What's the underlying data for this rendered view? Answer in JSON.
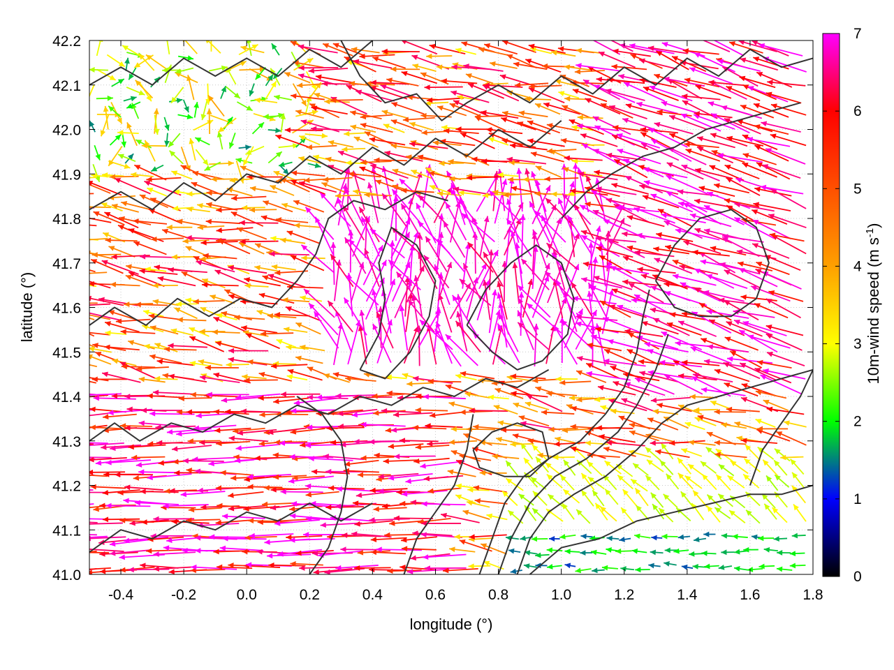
{
  "chart_data": {
    "type": "vector-field",
    "xlabel": "longitude (°)",
    "ylabel": "latitude (°)",
    "colorbar_label": "10m-wind speed (m s",
    "colorbar_label_sup": "-1",
    "colorbar_label_end": ")",
    "xlim": [
      -0.5,
      1.8
    ],
    "ylim": [
      41.0,
      42.2
    ],
    "x_ticks": [
      -0.4,
      -0.2,
      0.0,
      0.2,
      0.4,
      0.6,
      0.8,
      1.0,
      1.2,
      1.4,
      1.6,
      1.8
    ],
    "x_tick_labels": [
      "-0.4",
      "-0.2",
      "0.0",
      "0.2",
      "0.4",
      "0.6",
      "0.8",
      "1.0",
      "1.2",
      "1.4",
      "1.6",
      "1.8"
    ],
    "y_ticks": [
      41.0,
      41.1,
      41.2,
      41.3,
      41.4,
      41.5,
      41.6,
      41.7,
      41.8,
      41.9,
      42.0,
      42.1,
      42.2
    ],
    "y_tick_labels": [
      "41.0",
      "41.1",
      "41.2",
      "41.3",
      "41.4",
      "41.5",
      "41.6",
      "41.7",
      "41.8",
      "41.9",
      "42.0",
      "42.1",
      "42.2"
    ],
    "colorbar_range": [
      0,
      7
    ],
    "colorbar_ticks": [
      0,
      1,
      2,
      3,
      4,
      5,
      6,
      7
    ],
    "colorbar_tick_labels": [
      "0",
      "1",
      "2",
      "3",
      "4",
      "5",
      "6",
      "7"
    ],
    "colormap_stops": [
      {
        "value": 0,
        "color": "#000000"
      },
      {
        "value": 1,
        "color": "#0000ff"
      },
      {
        "value": 2,
        "color": "#00ff00"
      },
      {
        "value": 3,
        "color": "#ffff00"
      },
      {
        "value": 4,
        "color": "#ffa000"
      },
      {
        "value": 5,
        "color": "#ff5000"
      },
      {
        "value": 6,
        "color": "#ff0000"
      },
      {
        "value": 7,
        "color": "#ff00ff"
      }
    ],
    "grid": true,
    "contour_color": "#333333",
    "contours": [
      [
        [
          0.74,
          41.0
        ],
        [
          0.78,
          41.08
        ],
        [
          0.82,
          41.16
        ],
        [
          0.88,
          41.22
        ],
        [
          0.96,
          41.26
        ],
        [
          1.06,
          41.3
        ],
        [
          1.14,
          41.36
        ],
        [
          1.2,
          41.42
        ],
        [
          1.24,
          41.5
        ],
        [
          1.26,
          41.58
        ],
        [
          1.28,
          41.64
        ]
      ],
      [
        [
          0.8,
          41.0
        ],
        [
          0.84,
          41.08
        ],
        [
          0.9,
          41.16
        ],
        [
          0.98,
          41.22
        ],
        [
          1.08,
          41.26
        ],
        [
          1.18,
          41.32
        ],
        [
          1.24,
          41.38
        ],
        [
          1.3,
          41.46
        ],
        [
          1.34,
          41.54
        ]
      ],
      [
        [
          0.86,
          41.0
        ],
        [
          0.9,
          41.08
        ],
        [
          0.96,
          41.14
        ],
        [
          1.04,
          41.18
        ],
        [
          1.14,
          41.22
        ],
        [
          1.24,
          41.28
        ],
        [
          1.32,
          41.34
        ],
        [
          1.4,
          41.38
        ],
        [
          1.5,
          41.4
        ],
        [
          1.6,
          41.42
        ],
        [
          1.7,
          41.44
        ],
        [
          1.8,
          41.46
        ]
      ],
      [
        [
          0.9,
          41.0
        ],
        [
          1.0,
          41.06
        ],
        [
          1.12,
          41.08
        ],
        [
          1.24,
          41.12
        ],
        [
          1.36,
          41.14
        ],
        [
          1.48,
          41.16
        ],
        [
          1.6,
          41.18
        ],
        [
          1.7,
          41.18
        ],
        [
          1.8,
          41.2
        ]
      ],
      [
        [
          -0.5,
          41.05
        ],
        [
          -0.4,
          41.1
        ],
        [
          -0.3,
          41.08
        ],
        [
          -0.2,
          41.12
        ],
        [
          -0.1,
          41.1
        ],
        [
          0.0,
          41.14
        ],
        [
          0.1,
          41.12
        ],
        [
          0.2,
          41.16
        ],
        [
          0.3,
          41.12
        ],
        [
          0.4,
          41.16
        ]
      ],
      [
        [
          -0.5,
          41.3
        ],
        [
          -0.42,
          41.34
        ],
        [
          -0.34,
          41.3
        ],
        [
          -0.24,
          41.34
        ],
        [
          -0.14,
          41.32
        ],
        [
          -0.04,
          41.36
        ],
        [
          0.06,
          41.34
        ],
        [
          0.16,
          41.38
        ],
        [
          0.26,
          41.36
        ],
        [
          0.36,
          41.4
        ],
        [
          0.46,
          41.38
        ],
        [
          0.56,
          41.42
        ],
        [
          0.66,
          41.4
        ],
        [
          0.76,
          41.44
        ],
        [
          0.86,
          41.42
        ],
        [
          0.96,
          41.46
        ]
      ],
      [
        [
          -0.5,
          41.56
        ],
        [
          -0.42,
          41.6
        ],
        [
          -0.32,
          41.56
        ],
        [
          -0.22,
          41.62
        ],
        [
          -0.12,
          41.58
        ],
        [
          -0.02,
          41.62
        ],
        [
          0.08,
          41.6
        ],
        [
          0.16,
          41.66
        ],
        [
          0.22,
          41.72
        ],
        [
          0.26,
          41.8
        ],
        [
          0.34,
          41.84
        ],
        [
          0.44,
          41.82
        ],
        [
          0.54,
          41.86
        ],
        [
          0.64,
          41.84
        ]
      ],
      [
        [
          -0.5,
          41.82
        ],
        [
          -0.4,
          41.86
        ],
        [
          -0.3,
          41.82
        ],
        [
          -0.2,
          41.88
        ],
        [
          -0.1,
          41.84
        ],
        [
          0.0,
          41.9
        ],
        [
          0.1,
          41.88
        ],
        [
          0.2,
          41.94
        ],
        [
          0.3,
          41.9
        ],
        [
          0.4,
          41.96
        ],
        [
          0.5,
          41.92
        ],
        [
          0.6,
          41.98
        ],
        [
          0.7,
          41.94
        ],
        [
          0.8,
          42.0
        ],
        [
          0.9,
          41.96
        ],
        [
          1.0,
          42.02
        ]
      ],
      [
        [
          -0.5,
          42.1
        ],
        [
          -0.4,
          42.14
        ],
        [
          -0.3,
          42.1
        ],
        [
          -0.2,
          42.16
        ],
        [
          -0.1,
          42.12
        ],
        [
          0.0,
          42.16
        ],
        [
          0.1,
          42.12
        ],
        [
          0.2,
          42.18
        ],
        [
          0.3,
          42.14
        ],
        [
          0.4,
          42.2
        ]
      ],
      [
        [
          0.3,
          42.2
        ],
        [
          0.36,
          42.12
        ],
        [
          0.44,
          42.06
        ],
        [
          0.54,
          42.08
        ],
        [
          0.62,
          42.02
        ],
        [
          0.7,
          42.06
        ],
        [
          0.8,
          42.1
        ],
        [
          0.9,
          42.06
        ],
        [
          1.0,
          42.12
        ],
        [
          1.1,
          42.08
        ],
        [
          1.2,
          42.14
        ],
        [
          1.3,
          42.1
        ],
        [
          1.4,
          42.16
        ],
        [
          1.5,
          42.12
        ],
        [
          1.6,
          42.18
        ],
        [
          1.7,
          42.14
        ],
        [
          1.8,
          42.16
        ]
      ],
      [
        [
          0.36,
          41.46
        ],
        [
          0.42,
          41.54
        ],
        [
          0.44,
          41.62
        ],
        [
          0.42,
          41.7
        ],
        [
          0.46,
          41.78
        ],
        [
          0.54,
          41.74
        ],
        [
          0.6,
          41.66
        ],
        [
          0.58,
          41.58
        ],
        [
          0.52,
          41.5
        ],
        [
          0.44,
          41.44
        ],
        [
          0.36,
          41.46
        ]
      ],
      [
        [
          0.7,
          41.56
        ],
        [
          0.76,
          41.64
        ],
        [
          0.84,
          41.7
        ],
        [
          0.92,
          41.74
        ],
        [
          1.0,
          41.7
        ],
        [
          1.04,
          41.62
        ],
        [
          1.02,
          41.54
        ],
        [
          0.94,
          41.48
        ],
        [
          0.86,
          41.46
        ],
        [
          0.78,
          41.5
        ],
        [
          0.7,
          41.56
        ]
      ],
      [
        [
          1.3,
          41.66
        ],
        [
          1.36,
          41.74
        ],
        [
          1.44,
          41.8
        ],
        [
          1.54,
          41.82
        ],
        [
          1.62,
          41.78
        ],
        [
          1.66,
          41.7
        ],
        [
          1.62,
          41.62
        ],
        [
          1.54,
          41.58
        ],
        [
          1.44,
          41.58
        ],
        [
          1.36,
          41.6
        ],
        [
          1.3,
          41.66
        ]
      ],
      [
        [
          0.72,
          41.28
        ],
        [
          0.78,
          41.32
        ],
        [
          0.86,
          41.34
        ],
        [
          0.94,
          41.32
        ],
        [
          0.96,
          41.26
        ],
        [
          0.9,
          41.22
        ],
        [
          0.82,
          41.22
        ],
        [
          0.74,
          41.24
        ],
        [
          0.72,
          41.28
        ]
      ],
      [
        [
          0.2,
          41.0
        ],
        [
          0.26,
          41.06
        ],
        [
          0.3,
          41.14
        ],
        [
          0.32,
          41.22
        ],
        [
          0.3,
          41.3
        ],
        [
          0.24,
          41.36
        ],
        [
          0.16,
          41.4
        ]
      ],
      [
        [
          0.5,
          41.0
        ],
        [
          0.54,
          41.08
        ],
        [
          0.6,
          41.14
        ],
        [
          0.66,
          41.2
        ],
        [
          0.7,
          41.28
        ],
        [
          0.72,
          41.36
        ]
      ],
      [
        [
          1.0,
          41.8
        ],
        [
          1.08,
          41.86
        ],
        [
          1.16,
          41.9
        ],
        [
          1.26,
          41.94
        ],
        [
          1.36,
          41.96
        ],
        [
          1.46,
          42.0
        ],
        [
          1.56,
          42.02
        ],
        [
          1.66,
          42.04
        ],
        [
          1.76,
          42.06
        ]
      ],
      [
        [
          1.6,
          41.2
        ],
        [
          1.64,
          41.28
        ],
        [
          1.7,
          41.34
        ],
        [
          1.76,
          41.4
        ],
        [
          1.8,
          41.46
        ]
      ]
    ]
  }
}
